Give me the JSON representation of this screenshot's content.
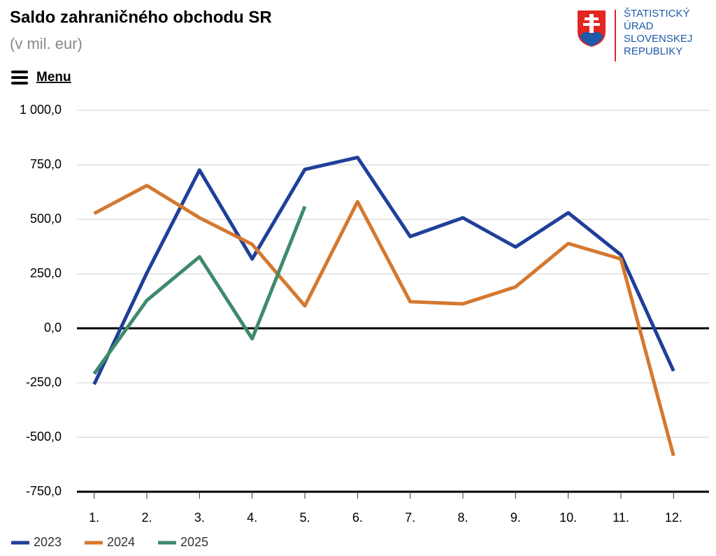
{
  "menu": "Menu",
  "logo": {
    "lines": [
      "ŠTATISTICKÝ",
      "ÚRAD",
      "SLOVENSKEJ",
      "REPUBLIKY"
    ]
  },
  "chart_data": {
    "type": "line",
    "title": "Saldo zahraničného obchodu SR",
    "subtitle": "(v mil. eur)",
    "categories": [
      "1.",
      "2.",
      "3.",
      "4.",
      "5.",
      "6.",
      "7.",
      "8.",
      "9.",
      "10.",
      "11.",
      "12."
    ],
    "series": [
      {
        "name": "2023",
        "color": "#1f3f99",
        "values": [
          -257,
          254,
          726,
          318,
          729,
          784,
          421,
          507,
          373,
          530,
          337,
          -196
        ]
      },
      {
        "name": "2024",
        "color": "#d4782f",
        "values": [
          527,
          655,
          507,
          385,
          103,
          581,
          122,
          112,
          190,
          389,
          318,
          -585
        ]
      },
      {
        "name": "2025",
        "color": "#3f8a6b",
        "values": [
          -209,
          128,
          328,
          -48,
          559,
          null,
          null,
          null,
          null,
          null,
          null,
          null
        ]
      }
    ],
    "ylim": [
      -750,
      1000
    ],
    "yticks": [
      {
        "value": -750,
        "label": "-750,0"
      },
      {
        "value": -500,
        "label": "-500,0"
      },
      {
        "value": -250,
        "label": "-250,0"
      },
      {
        "value": 0,
        "label": "0,0"
      },
      {
        "value": 250,
        "label": "250,0"
      },
      {
        "value": 500,
        "label": "500,0"
      },
      {
        "value": 750,
        "label": "750,0"
      },
      {
        "value": 1000,
        "label": "1 000,0"
      }
    ],
    "grid": true,
    "legend": "bottom-left"
  }
}
